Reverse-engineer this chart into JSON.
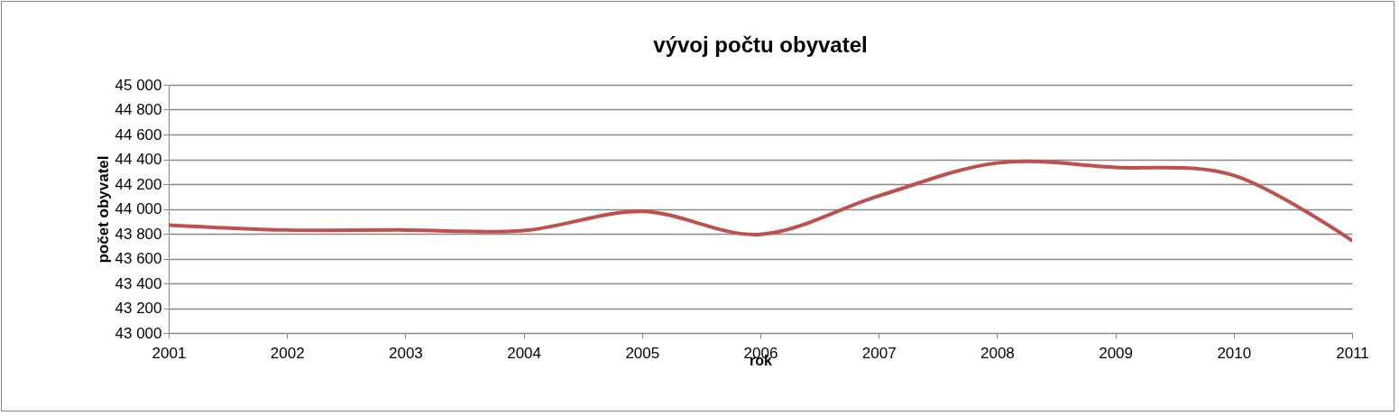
{
  "chart_data": {
    "type": "line",
    "title": "vývoj počtu obyvatel",
    "xlabel": "rok",
    "ylabel": "počet obyvatel",
    "x": [
      2001,
      2002,
      2003,
      2004,
      2005,
      2006,
      2007,
      2008,
      2009,
      2010,
      2011
    ],
    "series": [
      {
        "color": "#c0504d",
        "values": [
          43870,
          43830,
          43830,
          43825,
          43980,
          43795,
          44105,
          44370,
          44335,
          44270,
          43745
        ]
      }
    ],
    "xlim": [
      2001,
      2011
    ],
    "xticks": [
      2001,
      2002,
      2003,
      2004,
      2005,
      2006,
      2007,
      2008,
      2009,
      2010,
      2011
    ],
    "ylim": [
      43000,
      45000
    ],
    "yticks": [
      43000,
      43200,
      43400,
      43600,
      43800,
      44000,
      44200,
      44400,
      44600,
      44800,
      45000
    ],
    "grid": "y",
    "marker": "none",
    "line_style": "solid"
  }
}
